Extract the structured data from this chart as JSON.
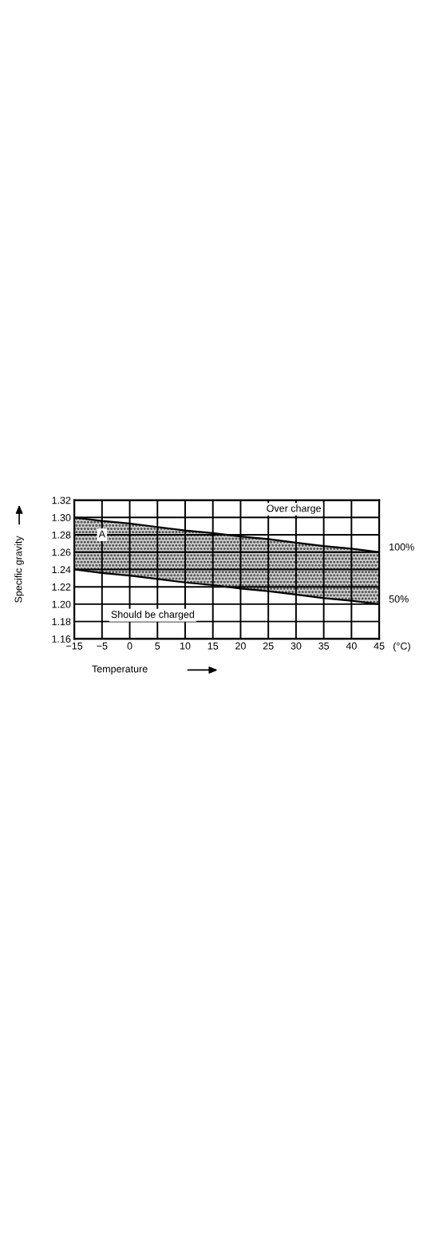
{
  "chart_data": {
    "type": "line",
    "xlabel": "Temperature",
    "ylabel": "Specific gravity",
    "categories": [
      "−15",
      "−5",
      "0",
      "5",
      "10",
      "15",
      "20",
      "25",
      "30",
      "35",
      "40",
      "45"
    ],
    "series": [
      {
        "name": "100%",
        "color": "#000000",
        "values": [
          1.3,
          1.296,
          1.293,
          1.289,
          1.285,
          1.282,
          1.278,
          1.275,
          1.271,
          1.267,
          1.264,
          1.26
        ],
        "lower": [
          1.24,
          1.236,
          1.233,
          1.229,
          1.225,
          1.222,
          1.218,
          1.215,
          1.211,
          1.207,
          1.204,
          1.2
        ],
        "upper": [
          1.3,
          1.296,
          1.293,
          1.289,
          1.285,
          1.282,
          1.278,
          1.275,
          1.271,
          1.267,
          1.264,
          1.26
        ]
      },
      {
        "name": "50%",
        "color": "#000000",
        "values": [
          1.24,
          1.236,
          1.233,
          1.229,
          1.225,
          1.222,
          1.218,
          1.215,
          1.211,
          1.207,
          1.204,
          1.2
        ]
      }
    ],
    "ylim": [
      1.16,
      1.32
    ],
    "yticks": [
      {
        "value": 1.16,
        "label": "1.16"
      },
      {
        "value": 1.18,
        "label": "1.18"
      },
      {
        "value": 1.2,
        "label": "1.20"
      },
      {
        "value": 1.22,
        "label": "1.22"
      },
      {
        "value": 1.24,
        "label": "1.24"
      },
      {
        "value": 1.26,
        "label": "1.26"
      },
      {
        "value": 1.28,
        "label": "1.28"
      },
      {
        "value": 1.3,
        "label": "1.30"
      },
      {
        "value": 1.32,
        "label": "1.32"
      }
    ],
    "grid": true,
    "marker": "none",
    "line_style": "solid",
    "legend": false,
    "annotations": [
      "Over charge",
      {
        "text": "A",
        "x": "−5",
        "y": 1.28
      },
      "Should be charged",
      "(°C)"
    ]
  }
}
